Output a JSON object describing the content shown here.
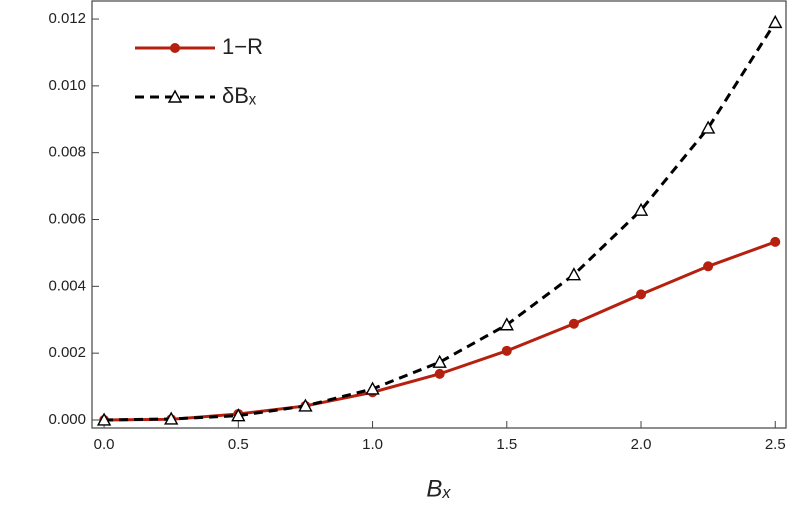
{
  "chart_data": {
    "type": "line",
    "x_label": "Bₓ",
    "x": [
      0,
      0.25,
      0.5,
      0.75,
      1.0,
      1.25,
      1.5,
      1.75,
      2.0,
      2.25,
      2.5
    ],
    "series": [
      {
        "name": "1−R",
        "color": "#b5200f",
        "marker": "circle",
        "dashed": false,
        "values": [
          0,
          2e-05,
          0.00018,
          0.00042,
          0.00083,
          0.00138,
          0.00207,
          0.00288,
          0.00376,
          0.0046,
          0.00533
        ]
      },
      {
        "name": "δBₓ",
        "color": "#000000",
        "marker": "triangle",
        "dashed": true,
        "values": [
          0,
          3e-05,
          0.00013,
          0.00042,
          0.00093,
          0.00173,
          0.00285,
          0.00435,
          0.00628,
          0.00874,
          0.0119
        ]
      }
    ],
    "xlim": [
      -0.045,
      2.54
    ],
    "ylim": [
      -0.00024,
      0.01257
    ],
    "xticks": [
      {
        "value": 0,
        "label": "0.0"
      },
      {
        "value": 0.5,
        "label": "0.5"
      },
      {
        "value": 1,
        "label": "1.0"
      },
      {
        "value": 1.5,
        "label": "1.5"
      },
      {
        "value": 2,
        "label": "2.0"
      },
      {
        "value": 2.5,
        "label": "2.5"
      }
    ],
    "yticks": [
      {
        "value": 0,
        "label": "0.000"
      },
      {
        "value": 0.002,
        "label": "0.002"
      },
      {
        "value": 0.004,
        "label": "0.004"
      },
      {
        "value": 0.006,
        "label": "0.006"
      },
      {
        "value": 0.008,
        "label": "0.008"
      },
      {
        "value": 0.01,
        "label": "0.010"
      },
      {
        "value": 0.012,
        "label": "0.012"
      }
    ],
    "legend": "upper-left"
  }
}
